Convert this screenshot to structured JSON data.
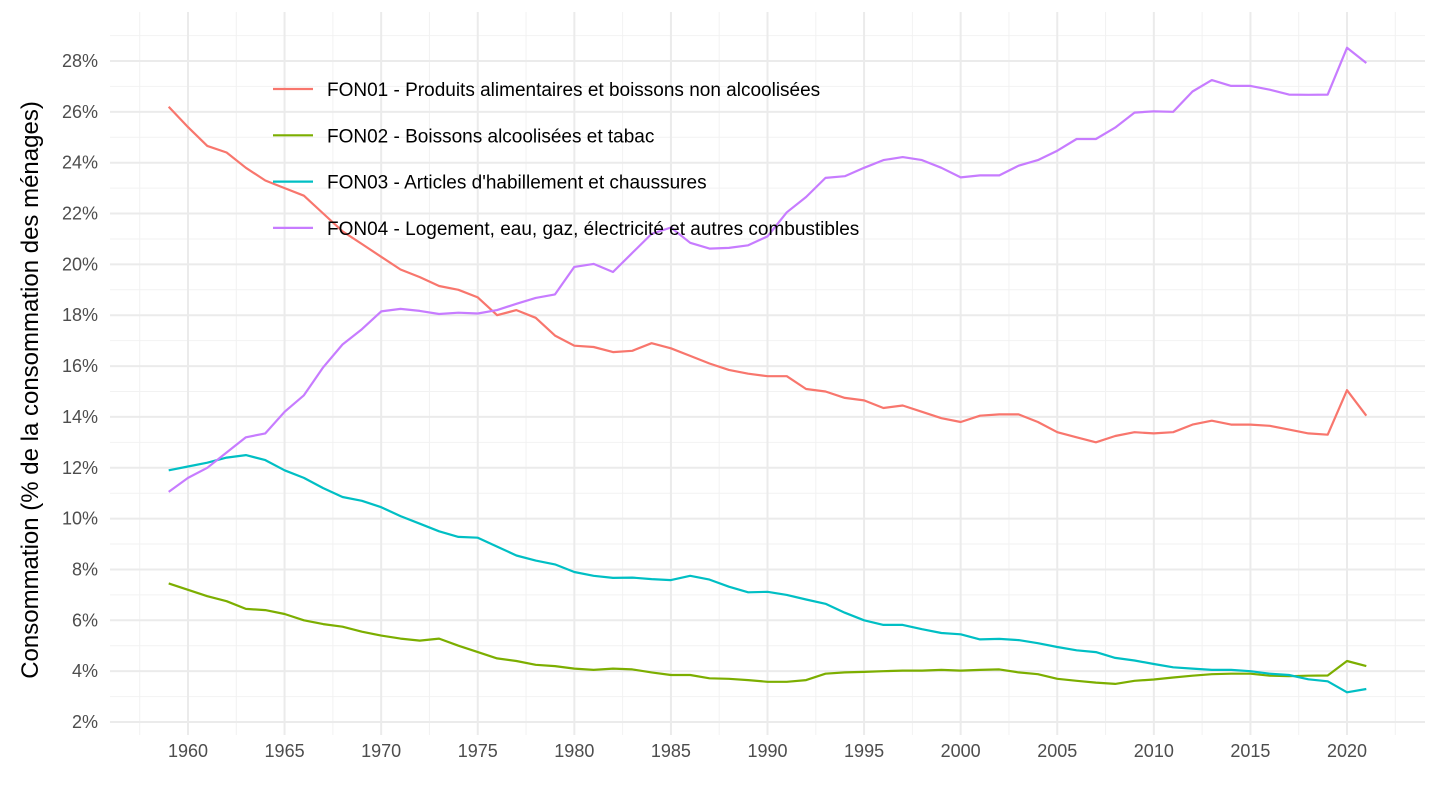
{
  "chart_data": {
    "type": "line",
    "title": "",
    "xlabel": "",
    "ylabel": "Consommation (% de la consommation des ménages)",
    "xlim": [
      1956.5,
      2023.5
    ],
    "ylim": [
      2,
      28.5
    ],
    "x_ticks": [
      1960,
      1965,
      1970,
      1975,
      1980,
      1985,
      1990,
      1995,
      2000,
      2005,
      2010,
      2015,
      2020
    ],
    "y_ticks": [
      2,
      4,
      6,
      8,
      10,
      12,
      14,
      16,
      18,
      20,
      22,
      24,
      26,
      28
    ],
    "y_tick_labels": [
      "2%",
      "4%",
      "6%",
      "8%",
      "10%",
      "12%",
      "14%",
      "16%",
      "18%",
      "20%",
      "22%",
      "24%",
      "26%",
      "28%"
    ],
    "grid": true,
    "legend_position": "top-left-inside",
    "x": [
      1959,
      1960,
      1961,
      1962,
      1963,
      1964,
      1965,
      1966,
      1967,
      1968,
      1969,
      1970,
      1971,
      1972,
      1973,
      1974,
      1975,
      1976,
      1977,
      1978,
      1979,
      1980,
      1981,
      1982,
      1983,
      1984,
      1985,
      1986,
      1987,
      1988,
      1989,
      1990,
      1991,
      1992,
      1993,
      1994,
      1995,
      1996,
      1997,
      1998,
      1999,
      2000,
      2001,
      2002,
      2003,
      2004,
      2005,
      2006,
      2007,
      2008,
      2009,
      2010,
      2011,
      2012,
      2013,
      2014,
      2015,
      2016,
      2017,
      2018,
      2019,
      2020,
      2021
    ],
    "series": [
      {
        "name": "FON01 - Produits alimentaires et boissons non alcoolisées",
        "color": "#f8766d",
        "values": [
          26.2,
          25.4,
          24.66,
          24.4,
          23.8,
          23.3,
          23.0,
          22.7,
          22.0,
          21.3,
          20.8,
          20.3,
          19.8,
          19.5,
          19.15,
          19.0,
          18.7,
          18.0,
          18.2,
          17.9,
          17.2,
          16.8,
          16.75,
          16.55,
          16.6,
          16.9,
          16.7,
          16.4,
          16.1,
          15.85,
          15.7,
          15.6,
          15.6,
          15.1,
          15.0,
          14.75,
          14.65,
          14.35,
          14.45,
          14.2,
          13.95,
          13.8,
          14.05,
          14.1,
          14.1,
          13.8,
          13.4,
          13.2,
          13.0,
          13.25,
          13.4,
          13.35,
          13.4,
          13.7,
          13.85,
          13.7,
          13.7,
          13.65,
          13.5,
          13.35,
          13.3,
          15.05,
          14.05
        ]
      },
      {
        "name": "FON02 - Boissons alcoolisées et tabac",
        "color": "#7cae00",
        "values": [
          7.45,
          7.2,
          6.95,
          6.75,
          6.45,
          6.4,
          6.25,
          6.0,
          5.85,
          5.75,
          5.55,
          5.4,
          5.28,
          5.2,
          5.28,
          5.0,
          4.75,
          4.5,
          4.4,
          4.25,
          4.2,
          4.1,
          4.05,
          4.1,
          4.07,
          3.95,
          3.85,
          3.85,
          3.72,
          3.7,
          3.65,
          3.58,
          3.58,
          3.65,
          3.9,
          3.95,
          3.97,
          4.0,
          4.02,
          4.02,
          4.05,
          4.02,
          4.05,
          4.07,
          3.95,
          3.88,
          3.7,
          3.62,
          3.55,
          3.5,
          3.62,
          3.67,
          3.75,
          3.82,
          3.88,
          3.9,
          3.9,
          3.82,
          3.8,
          3.82,
          3.83,
          4.4,
          4.2
        ]
      },
      {
        "name": "FON03 - Articles d'habillement et chaussures",
        "color": "#00bfc4",
        "values": [
          11.9,
          12.05,
          12.2,
          12.4,
          12.5,
          12.3,
          11.9,
          11.6,
          11.2,
          10.85,
          10.7,
          10.45,
          10.1,
          9.8,
          9.5,
          9.28,
          9.25,
          8.9,
          8.55,
          8.35,
          8.2,
          7.9,
          7.75,
          7.67,
          7.68,
          7.62,
          7.58,
          7.75,
          7.6,
          7.32,
          7.1,
          7.12,
          7.0,
          6.82,
          6.65,
          6.3,
          6.0,
          5.82,
          5.82,
          5.65,
          5.5,
          5.45,
          5.25,
          5.27,
          5.22,
          5.1,
          4.95,
          4.82,
          4.75,
          4.52,
          4.42,
          4.28,
          4.15,
          4.1,
          4.05,
          4.05,
          4.0,
          3.9,
          3.85,
          3.68,
          3.6,
          3.17,
          3.3
        ]
      },
      {
        "name": "FON04 - Logement, eau, gaz, électricité et autres combustibles",
        "color": "#c77cff",
        "values": [
          11.05,
          11.6,
          12.0,
          12.6,
          13.2,
          13.35,
          14.2,
          14.85,
          15.95,
          16.85,
          17.45,
          18.15,
          18.25,
          18.17,
          18.05,
          18.1,
          18.07,
          18.2,
          18.45,
          18.68,
          18.82,
          19.9,
          20.02,
          19.7,
          20.45,
          21.2,
          21.45,
          20.85,
          20.62,
          20.65,
          20.75,
          21.1,
          22.05,
          22.65,
          23.4,
          23.47,
          23.8,
          24.1,
          24.22,
          24.1,
          23.8,
          23.42,
          23.5,
          23.5,
          23.88,
          24.1,
          24.47,
          24.93,
          24.93,
          25.38,
          25.97,
          26.02,
          26.0,
          26.8,
          27.25,
          27.02,
          27.02,
          26.87,
          26.68,
          26.67,
          26.68,
          28.52,
          27.92
        ]
      }
    ]
  }
}
